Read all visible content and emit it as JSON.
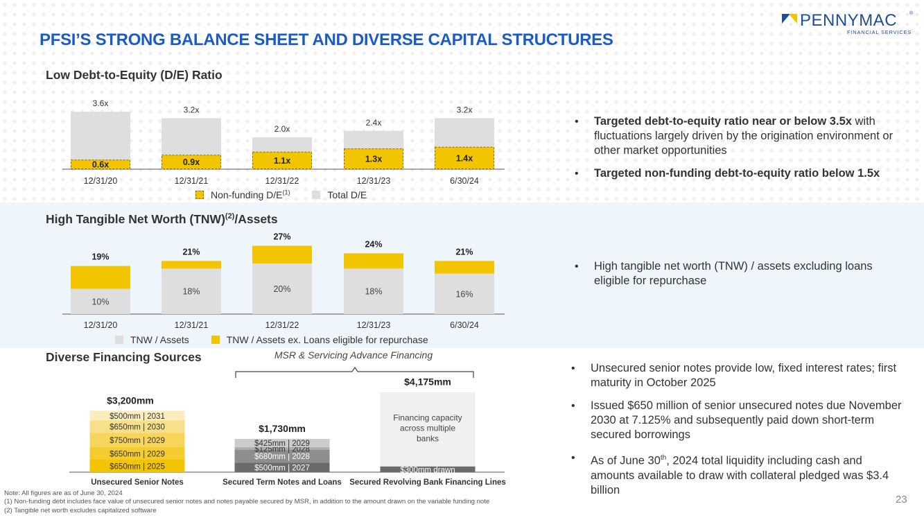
{
  "page": {
    "title": "PFSI’S STRONG BALANCE SHEET AND DIVERSE CAPITAL STRUCTURES",
    "logo": {
      "word": "PENNYMAC",
      "sub": "FINANCIAL SERVICES",
      "reg": "®"
    },
    "page_number": "23",
    "notes": [
      "Note: All figures are as of June 30, 2024",
      "(1) Non-funding debt includes face value of unsecured senior notes and notes payable secured by MSR, in addition to the amount drawn on the variable funding note",
      "(2) Tangible net worth excludes capitalized software"
    ]
  },
  "colors": {
    "gold": "#f2c500",
    "gray": "#dedede",
    "blue_title": "#1b5cc4"
  },
  "de_section": {
    "title": "Low Debt-to-Equity (D/E) Ratio",
    "legend": {
      "nonfunding": "Non-funding D/E",
      "nonfunding_sup": "(1)",
      "total": "Total D/E"
    },
    "bullets": [
      {
        "bold": "Targeted debt-to-equity ratio near or below 3.5x",
        "rest": " with fluctuations largely driven by the origination environment or other market opportunities"
      },
      {
        "bold": "Targeted non-funding debt-to-equity ratio below 1.5x",
        "rest": ""
      }
    ]
  },
  "tnw_section": {
    "title": "High Tangible Net Worth (TNW)",
    "title_sup": "(2)",
    "title_tail": "/Assets",
    "legend": {
      "tnw": "TNW / Assets",
      "tnw_ex": "TNW / Assets ex. Loans eligible for repurchase"
    },
    "bullets": [
      {
        "bold": "",
        "rest": "High tangible net worth (TNW) / assets excluding loans eligible for repurchase"
      }
    ]
  },
  "fin_section": {
    "title": "Diverse Financing Sources",
    "msr_label": "MSR & Servicing Advance Financing",
    "bullets": [
      {
        "text": "Unsecured senior notes provide low, fixed interest rates; first maturity in October 2025"
      },
      {
        "text": "Issued $650 million of senior unsecured notes due November 2030 at 7.125% and subsequently paid down short-term secured borrowings"
      },
      {
        "pre": "As of June 30",
        "sup": "th",
        "post": ", 2024 total liquidity including cash and amounts available to draw with collateral pledged was $3.4 billion"
      }
    ]
  },
  "chart_data": [
    {
      "type": "bar",
      "title": "Low Debt-to-Equity (D/E) Ratio",
      "categories": [
        "12/31/20",
        "12/31/21",
        "12/31/22",
        "12/31/23",
        "6/30/24"
      ],
      "series": [
        {
          "name": "Non-funding D/E",
          "values": [
            0.6,
            0.9,
            1.1,
            1.3,
            1.4
          ],
          "labels": [
            "0.6x",
            "0.9x",
            "1.1x",
            "1.3x",
            "1.4x"
          ]
        },
        {
          "name": "Total D/E",
          "values": [
            3.6,
            3.2,
            2.0,
            2.4,
            3.2
          ],
          "labels": [
            "3.6x",
            "3.2x",
            "2.0x",
            "2.4x",
            "3.2x"
          ]
        }
      ],
      "ylim": [
        0,
        4
      ]
    },
    {
      "type": "bar",
      "title": "High Tangible Net Worth (TNW)/Assets",
      "categories": [
        "12/31/20",
        "12/31/21",
        "12/31/22",
        "12/31/23",
        "6/30/24"
      ],
      "series": [
        {
          "name": "TNW / Assets",
          "values": [
            10,
            18,
            20,
            18,
            16
          ],
          "labels": [
            "10%",
            "18%",
            "20%",
            "18%",
            "16%"
          ]
        },
        {
          "name": "TNW / Assets ex. Loans eligible for repurchase",
          "values": [
            19,
            21,
            27,
            24,
            21
          ],
          "labels": [
            "19%",
            "21%",
            "27%",
            "24%",
            "21%"
          ]
        }
      ],
      "ylim": [
        0,
        30
      ]
    },
    {
      "type": "bar",
      "title": "Diverse Financing Sources",
      "categories": [
        "Unsecured Senior Notes",
        "Secured Term Notes and Loans",
        "Secured Revolving Bank Financing Lines"
      ],
      "totals": [
        3200,
        1730,
        4175
      ],
      "total_labels": [
        "$3,200mm",
        "$1,730mm",
        "$4,175mm"
      ],
      "stacks": [
        [
          {
            "value": 650,
            "label": "$650mm | 2025",
            "color": "#f2c500"
          },
          {
            "value": 650,
            "label": "$650mm | 2029",
            "color": "#f4cc2e"
          },
          {
            "value": 750,
            "label": "$750mm | 2029",
            "color": "#f6d55a"
          },
          {
            "value": 650,
            "label": "$650mm | 2030",
            "color": "#f8e08a"
          },
          {
            "value": 500,
            "label": "$500mm | 2031",
            "color": "#fbedbe"
          }
        ],
        [
          {
            "value": 500,
            "label": "$500mm | 2027",
            "color": "#6b6b6b"
          },
          {
            "value": 680,
            "label": "$680mm | 2028",
            "color": "#8e8e8e"
          },
          {
            "value": 125,
            "label": "$125mm | 2028",
            "color": "#afafaf"
          },
          {
            "value": 425,
            "label": "$425mm | 2029",
            "color": "#cbcbcb"
          }
        ],
        [
          {
            "value": 300,
            "label": "$300mm drawn",
            "color": "#6b6b6b"
          },
          {
            "value": 3875,
            "label": "Financing capacity across multiple banks",
            "color": "#f0f0f0"
          }
        ]
      ]
    }
  ]
}
